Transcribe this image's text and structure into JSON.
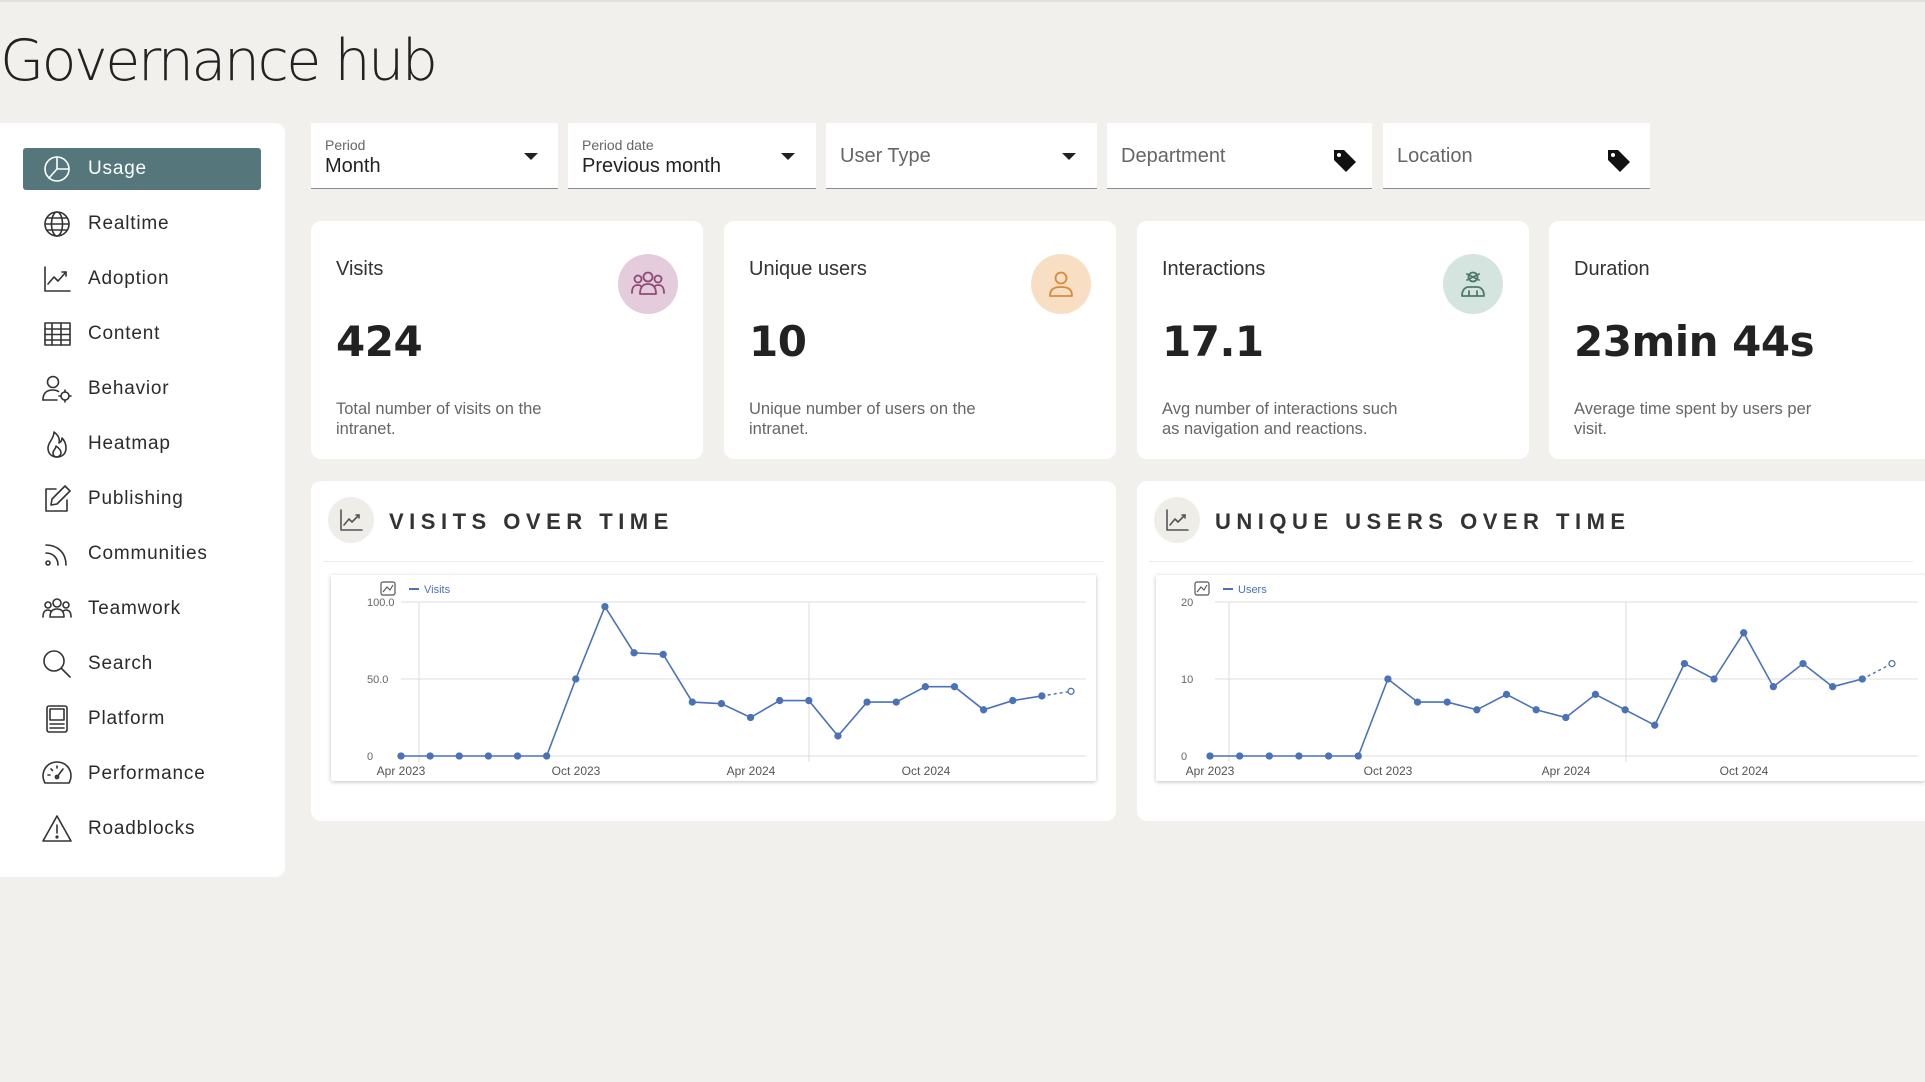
{
  "page_title": "Governance hub",
  "sidebar": {
    "items": [
      {
        "label": "Usage",
        "icon": "pie-chart-icon",
        "active": true
      },
      {
        "label": "Realtime",
        "icon": "globe-icon"
      },
      {
        "label": "Adoption",
        "icon": "trend-chart-icon"
      },
      {
        "label": "Content",
        "icon": "table-icon"
      },
      {
        "label": "Behavior",
        "icon": "user-gear-icon"
      },
      {
        "label": "Heatmap",
        "icon": "flame-icon"
      },
      {
        "label": "Publishing",
        "icon": "edit-icon"
      },
      {
        "label": "Communities",
        "icon": "rss-icon"
      },
      {
        "label": "Teamwork",
        "icon": "team-icon"
      },
      {
        "label": "Search",
        "icon": "search-icon"
      },
      {
        "label": "Platform",
        "icon": "monitor-icon"
      },
      {
        "label": "Performance",
        "icon": "gauge-icon"
      },
      {
        "label": "Roadblocks",
        "icon": "warning-icon"
      }
    ]
  },
  "filters": {
    "period": {
      "label": "Period",
      "value": "Month"
    },
    "period_date": {
      "label": "Period date",
      "value": "Previous month"
    },
    "user_type": {
      "placeholder": "User Type"
    },
    "department": {
      "placeholder": "Department"
    },
    "location": {
      "placeholder": "Location"
    }
  },
  "kpis": [
    {
      "title": "Visits",
      "value": "424",
      "description": "Total number of visits on the intranet.",
      "icon": "group-icon",
      "icon_bg": "#e4ccdc",
      "icon_color": "#8e4a78"
    },
    {
      "title": "Unique users",
      "value": "10",
      "description": "Unique number of users on the intranet.",
      "icon": "user-icon",
      "icon_bg": "#f8dfc4",
      "icon_color": "#d9893c"
    },
    {
      "title": "Interactions",
      "value": "17.1",
      "description": "Avg number of interactions such as navigation and reactions.",
      "icon": "interaction-icon",
      "icon_bg": "#d4e4de",
      "icon_color": "#4d7a68"
    },
    {
      "title": "Duration",
      "value": "23min 44s",
      "description": "Average time spent by users per visit.",
      "icon": "",
      "icon_bg": "",
      "icon_color": ""
    }
  ],
  "panels": [
    {
      "title": "VISITS OVER TIME"
    },
    {
      "title": "UNIQUE USERS OVER TIME"
    }
  ],
  "chart_data": [
    {
      "type": "line",
      "title": "VISITS OVER TIME",
      "series": [
        {
          "name": "Visits",
          "values": [
            0,
            0,
            0,
            0,
            0,
            0,
            50,
            97,
            67,
            66,
            35,
            34,
            25,
            36,
            36,
            13,
            35,
            35,
            45,
            45,
            30,
            36,
            39,
            42
          ],
          "last_point_projected": true
        }
      ],
      "x": [
        "2023-04",
        "2023-05",
        "2023-06",
        "2023-07",
        "2023-08",
        "2023-09",
        "2023-10",
        "2023-11",
        "2023-12",
        "2024-01",
        "2024-02",
        "2024-03",
        "2024-04",
        "2024-05",
        "2024-06",
        "2024-07",
        "2024-08",
        "2024-09",
        "2024-10",
        "2024-11",
        "2024-12",
        "2025-01",
        "2025-02",
        "2025-03"
      ],
      "x_tick_labels": [
        "Apr 2023",
        "Oct 2023",
        "Apr 2024",
        "Oct 2024"
      ],
      "y_tick_labels": [
        "100.0",
        "50.0",
        "0"
      ],
      "ylim": [
        0,
        100
      ],
      "legend": "top-left",
      "grid": true,
      "color": "#4a72b8"
    },
    {
      "type": "line",
      "title": "UNIQUE USERS OVER TIME",
      "series": [
        {
          "name": "Users",
          "values": [
            0,
            0,
            0,
            0,
            0,
            0,
            10,
            7,
            7,
            6,
            8,
            6,
            5,
            8,
            6,
            4,
            12,
            10,
            16,
            9,
            12,
            9,
            10,
            12
          ],
          "last_point_projected": true
        }
      ],
      "x": [
        "2023-04",
        "2023-05",
        "2023-06",
        "2023-07",
        "2023-08",
        "2023-09",
        "2023-10",
        "2023-11",
        "2023-12",
        "2024-01",
        "2024-02",
        "2024-03",
        "2024-04",
        "2024-05",
        "2024-06",
        "2024-07",
        "2024-08",
        "2024-09",
        "2024-10",
        "2024-11",
        "2024-12",
        "2025-01",
        "2025-02",
        "2025-03"
      ],
      "x_tick_labels": [
        "Apr 2023",
        "Oct 2023",
        "Apr 2024",
        "Oct 2024"
      ],
      "y_tick_labels": [
        "20",
        "10",
        "0"
      ],
      "ylim": [
        0,
        20
      ],
      "legend": "top-left",
      "grid": true,
      "color": "#4a72b8"
    }
  ]
}
